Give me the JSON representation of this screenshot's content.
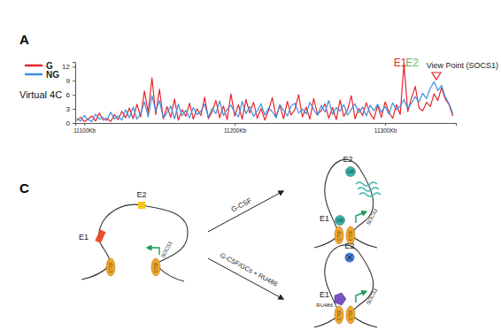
{
  "panel_labels": [
    "A",
    "C"
  ],
  "chart_data": {
    "type": "line",
    "ylabel": "Virtual 4C",
    "x": [
      11095,
      11097.5,
      11100,
      11102.5,
      11105,
      11107.5,
      11110,
      11112.5,
      11115,
      11117.5,
      11120,
      11122.5,
      11125,
      11127.5,
      11130,
      11132.5,
      11135,
      11137.5,
      11140,
      11142.5,
      11145,
      11147.5,
      11150,
      11152.5,
      11155,
      11157.5,
      11160,
      11162.5,
      11165,
      11167.5,
      11170,
      11172.5,
      11175,
      11177.5,
      11180,
      11182.5,
      11185,
      11187.5,
      11190,
      11192.5,
      11195,
      11197.5,
      11200,
      11202.5,
      11205,
      11207.5,
      11210,
      11212.5,
      11215,
      11217.5,
      11220,
      11222.5,
      11225,
      11227.5,
      11230,
      11232.5,
      11235,
      11237.5,
      11240,
      11242.5,
      11245,
      11247.5,
      11250,
      11252.5,
      11255,
      11257.5,
      11260,
      11262.5,
      11265,
      11267.5,
      11270,
      11272.5,
      11275,
      11277.5,
      11280,
      11282.5,
      11285,
      11287.5,
      11290,
      11292.5,
      11295,
      11297.5,
      11300,
      11302.5,
      11305,
      11307.5,
      11310,
      11312.5,
      11315,
      11317.5,
      11320,
      11322.5,
      11325,
      11327.5,
      11330,
      11332.5,
      11335,
      11337.5,
      11340,
      11342.5,
      11345
    ],
    "series": [
      {
        "name": "G",
        "color": "#e8252a",
        "values": [
          0.5,
          1.2,
          0.3,
          0.8,
          1.5,
          0.4,
          2.1,
          0.6,
          1.0,
          0.3,
          1.8,
          0.7,
          2.5,
          1.1,
          3.2,
          0.9,
          4.0,
          1.3,
          6.8,
          2.2,
          9.6,
          1.8,
          7.2,
          0.9,
          3.5,
          1.2,
          5.1,
          0.6,
          2.8,
          1.4,
          4.2,
          0.8,
          3.0,
          1.6,
          5.5,
          0.9,
          2.4,
          4.8,
          1.1,
          3.6,
          0.7,
          6.2,
          1.5,
          3.9,
          0.8,
          5.0,
          2.1,
          4.4,
          1.0,
          3.1,
          0.6,
          2.7,
          5.4,
          1.2,
          3.8,
          0.9,
          4.6,
          1.7,
          2.9,
          6.0,
          1.3,
          3.4,
          0.8,
          5.2,
          1.9,
          2.6,
          4.1,
          1.0,
          3.3,
          0.7,
          4.9,
          1.4,
          2.8,
          5.8,
          0.9,
          3.1,
          1.6,
          4.3,
          2.0,
          0.8,
          3.7,
          1.2,
          4.5,
          2.3,
          1.0,
          3.9,
          1.8,
          12.6,
          2.4,
          5.3,
          7.8,
          3.2,
          2.6,
          4.4,
          3.5,
          6.2,
          4.8,
          7.5,
          5.1,
          3.9,
          1.5
        ]
      },
      {
        "name": "NG",
        "color": "#3d8fe0",
        "values": [
          1.0,
          0.4,
          1.6,
          0.7,
          0.3,
          1.9,
          0.8,
          1.2,
          0.5,
          2.3,
          0.9,
          1.5,
          0.6,
          2.8,
          1.1,
          3.4,
          0.8,
          2.0,
          4.5,
          1.3,
          5.8,
          2.5,
          4.8,
          1.0,
          2.2,
          3.6,
          0.9,
          4.0,
          1.5,
          2.7,
          1.1,
          3.3,
          1.8,
          2.5,
          4.0,
          1.2,
          3.1,
          2.0,
          4.7,
          1.6,
          2.9,
          3.8,
          2.2,
          1.3,
          4.6,
          2.0,
          3.5,
          1.4,
          2.6,
          4.1,
          1.7,
          3.2,
          2.4,
          1.1,
          3.9,
          2.7,
          1.5,
          3.6,
          4.2,
          2.1,
          3.0,
          1.9,
          4.4,
          2.8,
          1.6,
          3.7,
          2.3,
          4.8,
          1.8,
          3.3,
          2.5,
          3.9,
          1.7,
          2.9,
          4.1,
          2.2,
          3.4,
          1.5,
          3.8,
          2.6,
          4.0,
          2.3,
          3.5,
          1.9,
          4.3,
          2.8,
          3.6,
          5.0,
          3.1,
          4.2,
          5.6,
          4.5,
          6.3,
          5.2,
          7.4,
          8.8,
          6.9,
          8.0,
          5.5,
          4.1,
          2.0
        ]
      }
    ],
    "xlim": [
      11094,
      11347
    ],
    "xticks": [
      {
        "value": 11100,
        "label": "11100Kb"
      },
      {
        "value": 11200,
        "label": "11200Kb"
      },
      {
        "value": 11300,
        "label": "11300Kb"
      }
    ],
    "ylim": [
      0,
      13
    ],
    "yticks": [
      0,
      3,
      6,
      9,
      12
    ],
    "legend": "top-left",
    "grid": false,
    "annotations": [
      {
        "text": "E1",
        "x": 11310,
        "color": "#e8252a"
      },
      {
        "text": "E2",
        "x": 11318,
        "color": "#5cb85c"
      },
      {
        "text": "View Point (SOCS1)",
        "x": 11334,
        "marker": "triangle",
        "color": "#e8252a"
      }
    ]
  },
  "diagram": {
    "gene": "SOCS1",
    "enhancers": [
      "E1",
      "E2"
    ],
    "anchor_protein": "CTCF",
    "bound_factor": "GR",
    "antagonist": "RU486",
    "transitions": [
      "G-CSF",
      "G-CSF/GCs + RU486"
    ]
  }
}
